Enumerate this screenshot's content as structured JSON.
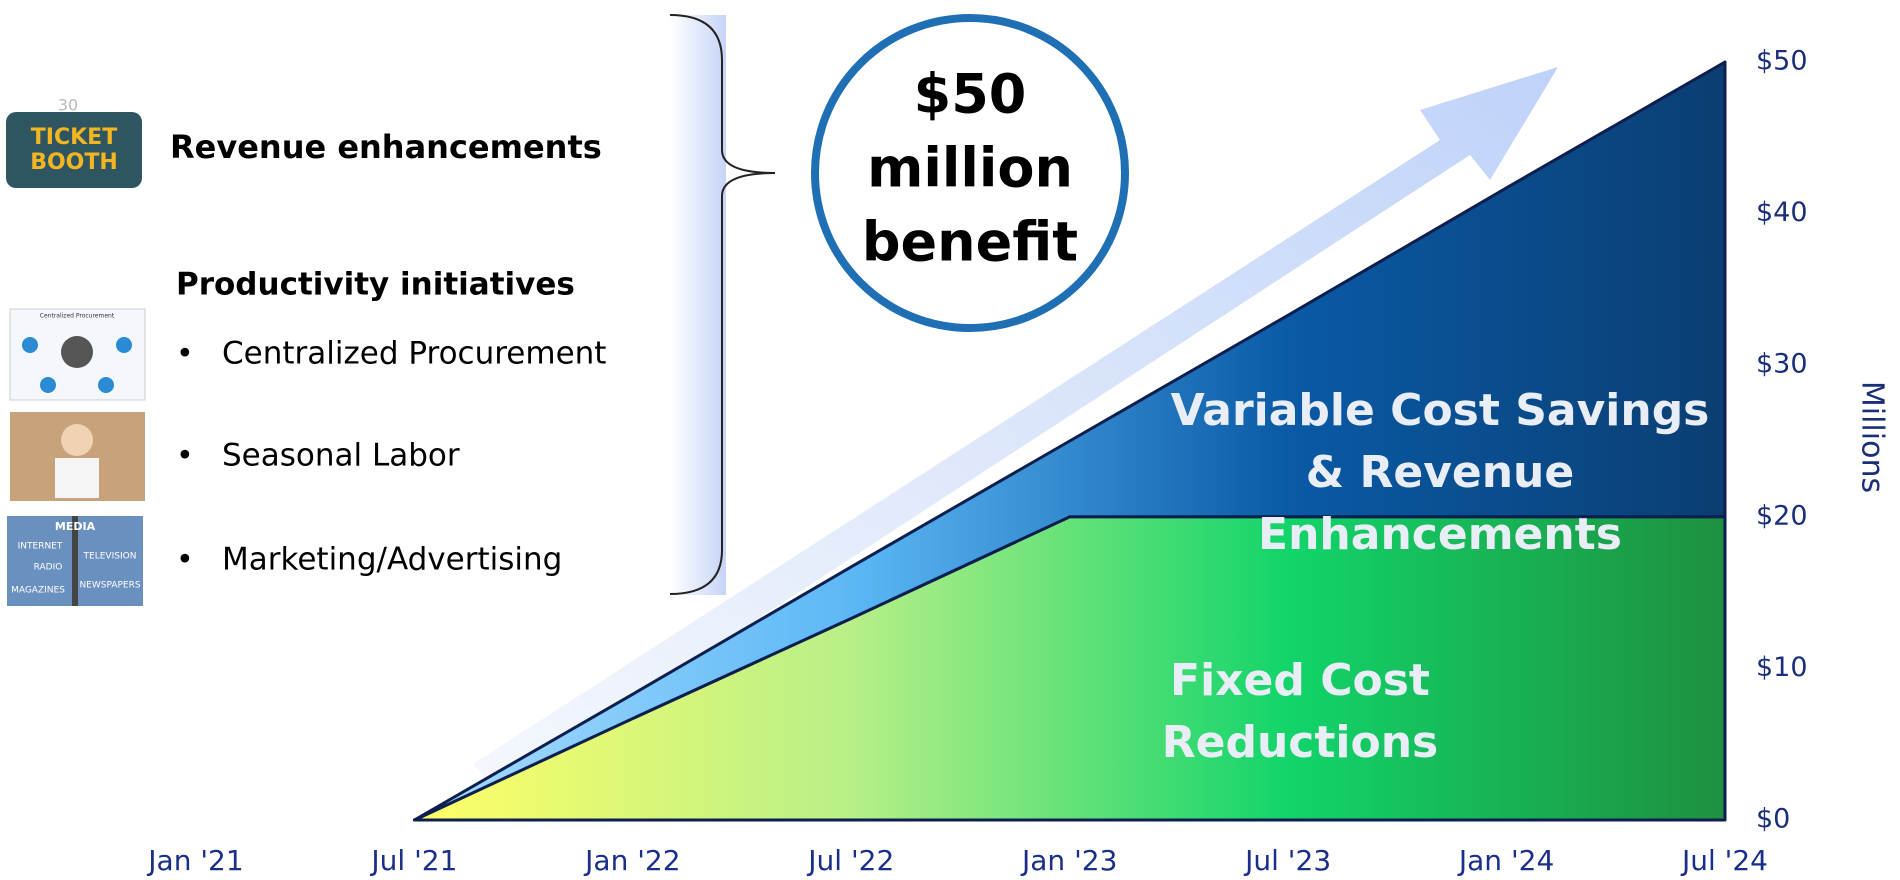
{
  "page_number": "30",
  "icons": {
    "ticket_booth": [
      "TICKET",
      "BOOTH"
    ],
    "procurement": "Centralized Procurement",
    "media": [
      "MEDIA",
      "INTERNET",
      "TELEVISION",
      "RADIO",
      "MAGAZINES",
      "NEWSPAPERS"
    ]
  },
  "initiatives": {
    "revenue": "Revenue enhancements",
    "productivity": "Productivity initiatives",
    "bullet": "•",
    "items": [
      "Centralized Procurement",
      "Seasonal Labor",
      "Marketing/Advertising"
    ]
  },
  "callout": {
    "lines": [
      "$50",
      "million",
      "benefit"
    ]
  },
  "chart_data": {
    "type": "area",
    "stacked": true,
    "x": [
      "Jan '21",
      "Jul '21",
      "Jan '22",
      "Jul '22",
      "Jan '23",
      "Jul  '23",
      "Jan '24",
      "Jul '24"
    ],
    "series": [
      {
        "name": "Fixed Cost Reductions",
        "colors": [
          "#ffff66",
          "#b8ef88",
          "#12d46a",
          "#1e9040"
        ],
        "values": [
          null,
          0,
          6.7,
          13.3,
          20,
          20,
          20,
          20
        ]
      },
      {
        "name": "Variable Cost Savings & Revenue Enhancements",
        "colors": [
          "#a9dcff",
          "#5cb8f5",
          "#0a5aa6",
          "#0b3e72"
        ],
        "values": [
          null,
          0,
          1.6,
          3.4,
          5,
          13.3,
          21.7,
          30
        ]
      }
    ],
    "ylim": [
      0,
      50
    ],
    "yticks": [
      {
        "value": 0,
        "label": "$0"
      },
      {
        "value": 10,
        "label": "$10"
      },
      {
        "value": 20,
        "label": "$20"
      },
      {
        "value": 30,
        "label": "$30"
      },
      {
        "value": 40,
        "label": "$40"
      },
      {
        "value": 50,
        "label": "$50"
      }
    ],
    "ylabel": "Millions"
  }
}
